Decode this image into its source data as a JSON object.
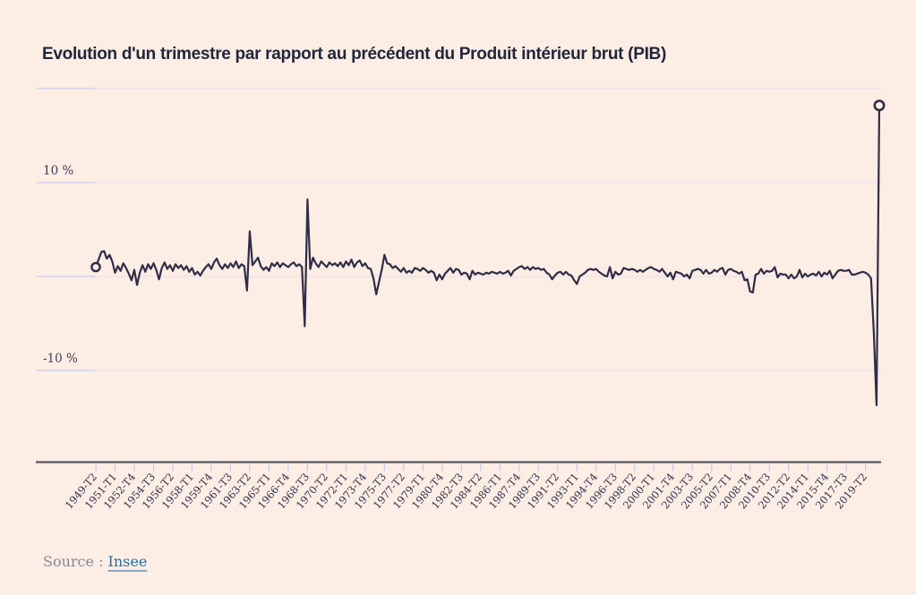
{
  "page": {
    "background": "#fcede5"
  },
  "source": {
    "label": "Source :",
    "link_text": "Insee"
  },
  "chart_data": {
    "type": "line",
    "title": "Evolution d'un trimestre par rapport au précédent du Produit intérieur brut (PIB)",
    "unit": "%",
    "x_start": "1949-T2",
    "x_end": "2020-T3",
    "x_frequency": "quarterly",
    "x_tick_every_n_points": 7,
    "x_tick_labels": [
      "1949-T2",
      "1951-T1",
      "1952-T4",
      "1954-T3",
      "1956-T2",
      "1958-T1",
      "1959-T4",
      "1961-T3",
      "1963-T2",
      "1965-T1",
      "1966-T4",
      "1968-T3",
      "1970-T2",
      "1972-T1",
      "1973-T4",
      "1975-T3",
      "1977-T2",
      "1979-T1",
      "1980-T4",
      "1982-T3",
      "1984-T2",
      "1986-T1",
      "1987-T4",
      "1989-T3",
      "1991-T2",
      "1993-T1",
      "1994-T4",
      "1996-T3",
      "1998-T2",
      "2000-T1",
      "2001-T4",
      "2003-T3",
      "2005-T2",
      "2007-T1",
      "2008-T4",
      "2010-T3",
      "2012-T2",
      "2014-T1",
      "2015-T4",
      "2017-T3",
      "2019-T2"
    ],
    "y_gridlines": [
      20,
      10,
      0,
      -10
    ],
    "y_axis_labels": [
      {
        "value": 10,
        "label": "10 %"
      },
      {
        "value": -10,
        "label": "-10 %"
      }
    ],
    "ylim": [
      -15,
      22
    ],
    "grid": true,
    "legend": "none",
    "values": [
      1.0,
      1.8,
      2.6,
      2.7,
      1.9,
      2.3,
      1.6,
      0.4,
      1.1,
      0.6,
      1.4,
      0.9,
      0.3,
      -0.4,
      0.7,
      -0.9,
      0.4,
      1.2,
      0.5,
      1.3,
      0.8,
      1.4,
      0.7,
      -0.3,
      0.9,
      1.5,
      0.8,
      1.2,
      0.6,
      1.3,
      0.9,
      1.2,
      0.7,
      1.1,
      0.5,
      0.9,
      0.2,
      0.5,
      0.1,
      0.6,
      1.0,
      1.3,
      0.8,
      1.5,
      1.9,
      1.2,
      0.8,
      1.3,
      0.9,
      1.4,
      1.0,
      1.6,
      0.9,
      1.3,
      1.1,
      -1.5,
      4.8,
      1.2,
      1.6,
      2.0,
      1.1,
      0.7,
      1.0,
      0.6,
      1.4,
      1.1,
      1.5,
      1.0,
      1.4,
      1.2,
      1.0,
      1.3,
      1.5,
      1.1,
      1.3,
      1.0,
      -5.3,
      8.2,
      0.8,
      2.0,
      1.4,
      1.0,
      1.6,
      1.3,
      1.0,
      1.5,
      1.2,
      1.4,
      1.1,
      1.5,
      1.0,
      1.6,
      1.2,
      1.8,
      1.0,
      1.5,
      1.7,
      1.1,
      1.4,
      0.9,
      0.8,
      -0.2,
      -1.9,
      -0.6,
      0.7,
      2.3,
      1.4,
      1.3,
      0.9,
      1.1,
      0.8,
      0.5,
      0.9,
      0.4,
      0.6,
      0.4,
      0.9,
      0.8,
      0.6,
      0.9,
      0.7,
      0.4,
      0.6,
      0.4,
      -0.4,
      0.2,
      -0.3,
      0.3,
      0.6,
      0.9,
      0.4,
      0.8,
      0.7,
      0.2,
      0.4,
      0.3,
      -0.3,
      0.6,
      0.2,
      0.4,
      0.3,
      0.2,
      0.4,
      0.3,
      0.5,
      0.4,
      0.3,
      0.5,
      0.3,
      0.4,
      0.6,
      0.1,
      0.6,
      0.8,
      1.0,
      1.1,
      0.8,
      1.0,
      0.7,
      1.0,
      0.8,
      0.9,
      0.7,
      0.8,
      0.4,
      0.2,
      -0.3,
      0.1,
      0.4,
      0.5,
      0.2,
      0.5,
      0.2,
      0.1,
      -0.4,
      -0.8,
      0.0,
      0.2,
      0.4,
      0.7,
      0.8,
      0.7,
      0.8,
      0.5,
      0.3,
      0.1,
      0.0,
      1.0,
      -0.2,
      0.5,
      0.2,
      0.3,
      0.9,
      0.8,
      0.7,
      0.8,
      0.7,
      0.5,
      0.7,
      0.5,
      0.7,
      0.9,
      1.0,
      0.8,
      0.7,
      0.5,
      0.8,
      0.4,
      0.0,
      0.4,
      -0.3,
      0.5,
      0.4,
      0.3,
      0.0,
      0.2,
      -0.2,
      0.6,
      0.7,
      0.8,
      0.7,
      0.3,
      0.7,
      0.3,
      0.4,
      0.7,
      0.5,
      0.8,
      0.9,
      0.2,
      0.7,
      0.8,
      0.6,
      0.5,
      0.3,
      0.5,
      -0.4,
      -0.3,
      -1.6,
      -1.7,
      0.2,
      0.3,
      0.8,
      0.3,
      0.6,
      0.5,
      0.6,
      1.0,
      -0.1,
      0.3,
      0.2,
      0.2,
      -0.2,
      0.2,
      -0.2,
      0.0,
      0.7,
      -0.1,
      0.3,
      0.0,
      0.2,
      0.3,
      0.1,
      0.5,
      0.0,
      0.4,
      0.2,
      0.6,
      -0.2,
      0.2,
      0.6,
      0.7,
      0.6,
      0.6,
      0.7,
      0.2,
      0.2,
      0.3,
      0.4,
      0.5,
      0.4,
      0.2,
      -0.2,
      -5.9,
      -13.7,
      18.2
    ],
    "colors": {
      "background": "#fcede5",
      "line": "#302d46",
      "gridline": "#eae4ea",
      "grid_tick": "#c9cee9",
      "axis": "#5a5562",
      "tick": "#c3cae8",
      "title": "#22263b",
      "x_label": "#32324a",
      "y_label": "#3f3e55",
      "source_text": "#8b8792",
      "link": "#2c6f9d"
    }
  }
}
